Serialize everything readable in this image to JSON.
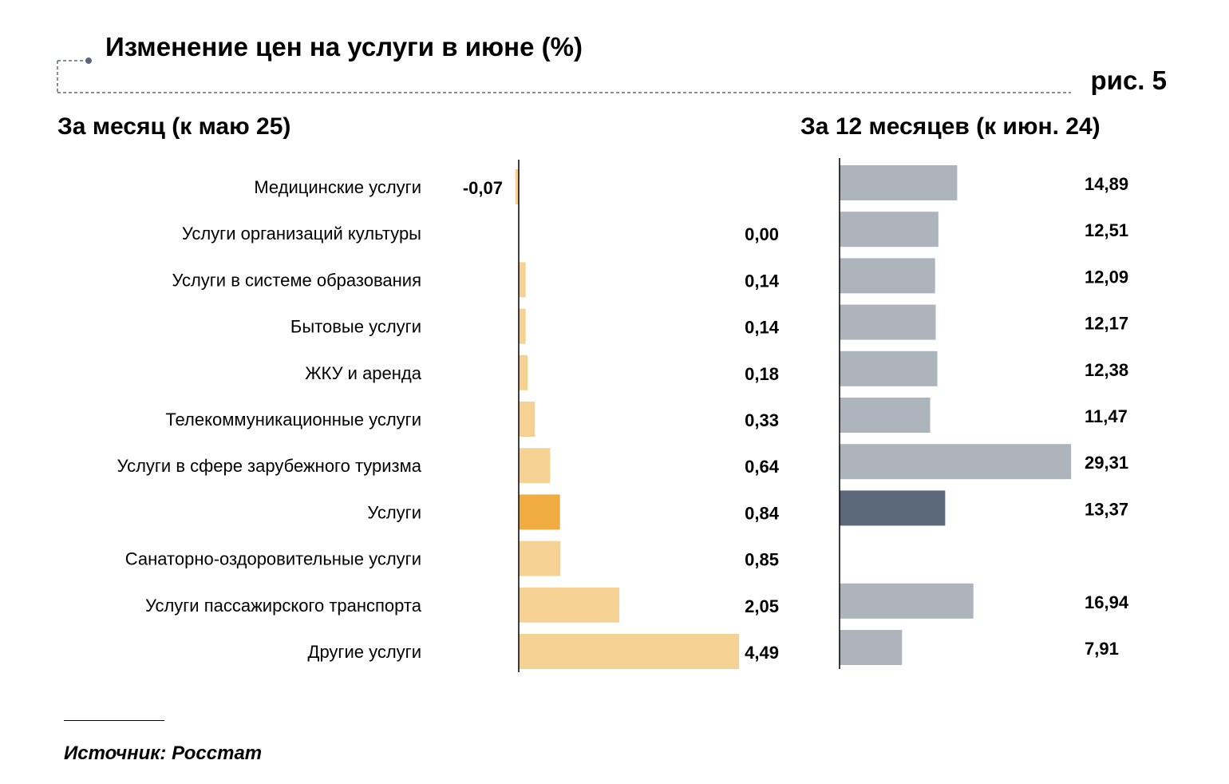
{
  "header": {
    "title": "Изменение цен на услуги в июне (%)",
    "figure_label": "рис. 5"
  },
  "footer": {
    "source": "Источник: Росстат"
  },
  "colors": {
    "left_bar": "#f5d294",
    "left_highlight": "#f0ab41",
    "right_bar": "#adb4bb",
    "right_highlight": "#5b687c",
    "accent_dot": "#5b687c"
  },
  "chart_data": [
    {
      "type": "bar",
      "orientation": "horizontal",
      "title": "За месяц (к маю 25)",
      "categories": [
        "Медицинские услуги",
        "Услуги организаций культуры",
        "Услуги в системе образования",
        "Бытовые услуги",
        "ЖКУ и аренда",
        "Телекоммуникационные услуги",
        "Услуги в сфере зарубежного туризма",
        "Услуги",
        "Санаторно-оздоровительные услуги",
        "Услуги пассажирского транспорта",
        "Другие услуги"
      ],
      "values": [
        -0.07,
        0.0,
        0.14,
        0.14,
        0.18,
        0.33,
        0.64,
        0.84,
        0.85,
        2.05,
        4.49
      ],
      "value_labels": [
        "-0,07",
        "0,00",
        "0,14",
        "0,14",
        "0,18",
        "0,33",
        "0,64",
        "0,84",
        "0,85",
        "2,05",
        "4,49"
      ],
      "highlight_index": 7,
      "xlim": [
        -0.07,
        4.49
      ],
      "grid": false
    },
    {
      "type": "bar",
      "orientation": "horizontal",
      "title": "За 12 месяцев (к июн. 24)",
      "categories": [
        "Медицинские услуги",
        "Услуги организаций культуры",
        "Услуги в системе образования",
        "Бытовые услуги",
        "ЖКУ и аренда",
        "Телекоммуникационные услуги",
        "Услуги в сфере зарубежного туризма",
        "Услуги",
        "Санаторно-оздоровительные услуги",
        "Услуги пассажирского транспорта",
        "Другие услуги"
      ],
      "values": [
        14.89,
        12.51,
        12.09,
        12.17,
        12.38,
        11.47,
        29.31,
        13.37,
        null,
        16.94,
        7.91
      ],
      "value_labels": [
        "14,89",
        "12,51",
        "12,09",
        "12,17",
        "12,38",
        "11,47",
        "29,31",
        "13,37",
        "",
        "16,94",
        "7,91"
      ],
      "highlight_index": 7,
      "xlim": [
        0,
        29.31
      ],
      "grid": false
    }
  ]
}
